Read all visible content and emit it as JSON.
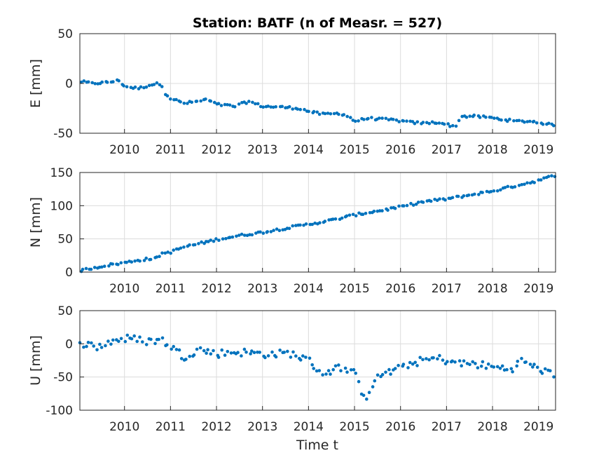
{
  "chart_data": {
    "type": "scatter",
    "title": "Station: BATF (n of Measr. = 527)",
    "xlabel": "Time t",
    "x_unit": "decimal year",
    "xlim": [
      2009.03,
      2019.37
    ],
    "x_ticks": [
      2010,
      2011,
      2012,
      2013,
      2014,
      2015,
      2016,
      2017,
      2018,
      2019
    ],
    "x_tick_labels": [
      "2010",
      "2011",
      "2012",
      "2013",
      "2014",
      "2015",
      "2016",
      "2017",
      "2018",
      "2019"
    ],
    "marker_color": "#0072BD",
    "grid": true,
    "panels": [
      {
        "id": "E",
        "ylabel": "E [mm]",
        "ylim": [
          -50,
          50
        ],
        "y_ticks": [
          -50,
          0,
          50
        ],
        "y_tick_labels": [
          "-50",
          "0",
          "50"
        ],
        "series": [
          {
            "points": [
              [
                2009.03,
                2
              ],
              [
                2009.3,
                0
              ],
              [
                2009.6,
                1
              ],
              [
                2009.9,
                3
              ],
              [
                2010.0,
                -3
              ],
              [
                2010.3,
                -5
              ],
              [
                2010.6,
                -1
              ],
              [
                2010.8,
                0
              ],
              [
                2010.85,
                -8
              ],
              [
                2011.0,
                -15
              ],
              [
                2011.3,
                -20
              ],
              [
                2011.6,
                -18
              ],
              [
                2011.8,
                -16
              ],
              [
                2012.0,
                -21
              ],
              [
                2012.4,
                -23
              ],
              [
                2012.7,
                -18
              ],
              [
                2013.0,
                -23
              ],
              [
                2013.5,
                -24
              ],
              [
                2013.8,
                -25
              ],
              [
                2014.0,
                -28
              ],
              [
                2014.3,
                -31
              ],
              [
                2014.7,
                -30
              ],
              [
                2014.9,
                -34
              ],
              [
                2015.0,
                -38
              ],
              [
                2015.3,
                -35
              ],
              [
                2015.6,
                -36
              ],
              [
                2015.9,
                -37
              ],
              [
                2016.2,
                -39
              ],
              [
                2016.5,
                -40
              ],
              [
                2016.8,
                -39
              ],
              [
                2017.0,
                -41
              ],
              [
                2017.2,
                -44
              ],
              [
                2017.3,
                -33
              ],
              [
                2017.6,
                -33
              ],
              [
                2017.9,
                -34
              ],
              [
                2018.2,
                -36
              ],
              [
                2018.5,
                -38
              ],
              [
                2018.8,
                -38
              ],
              [
                2019.0,
                -39
              ],
              [
                2019.2,
                -41
              ],
              [
                2019.37,
                -42
              ]
            ]
          }
        ]
      },
      {
        "id": "N",
        "ylabel": "N [mm]",
        "ylim": [
          0,
          150
        ],
        "y_ticks": [
          0,
          50,
          100,
          150
        ],
        "y_tick_labels": [
          "0",
          "50",
          "100",
          "150"
        ],
        "series": [
          {
            "points": [
              [
                2009.03,
                2
              ],
              [
                2009.3,
                6
              ],
              [
                2009.6,
                10
              ],
              [
                2010.0,
                14
              ],
              [
                2010.3,
                18
              ],
              [
                2010.7,
                21
              ],
              [
                2010.8,
                28
              ],
              [
                2011.0,
                30
              ],
              [
                2011.3,
                38
              ],
              [
                2011.7,
                44
              ],
              [
                2012.0,
                49
              ],
              [
                2012.5,
                55
              ],
              [
                2013.0,
                60
              ],
              [
                2013.5,
                66
              ],
              [
                2014.0,
                72
              ],
              [
                2014.5,
                78
              ],
              [
                2015.0,
                86
              ],
              [
                2015.5,
                92
              ],
              [
                2016.0,
                98
              ],
              [
                2016.5,
                106
              ],
              [
                2017.0,
                110
              ],
              [
                2017.5,
                116
              ],
              [
                2018.0,
                122
              ],
              [
                2018.5,
                130
              ],
              [
                2019.0,
                138
              ],
              [
                2019.37,
                146
              ]
            ]
          }
        ]
      },
      {
        "id": "U",
        "ylabel": "U [mm]",
        "ylim": [
          -100,
          50
        ],
        "y_ticks": [
          -100,
          -50,
          0,
          50
        ],
        "y_tick_labels": [
          "-100",
          "-50",
          "0",
          "50"
        ],
        "series": [
          {
            "points": [
              [
                2009.03,
                2
              ],
              [
                2009.4,
                -5
              ],
              [
                2009.8,
                6
              ],
              [
                2010.1,
                8
              ],
              [
                2010.5,
                4
              ],
              [
                2010.8,
                6
              ],
              [
                2011.0,
                -3
              ],
              [
                2011.3,
                -20
              ],
              [
                2011.6,
                -8
              ],
              [
                2012.0,
                -15
              ],
              [
                2012.4,
                -12
              ],
              [
                2012.8,
                -14
              ],
              [
                2013.2,
                -16
              ],
              [
                2013.6,
                -14
              ],
              [
                2014.0,
                -25
              ],
              [
                2014.3,
                -45
              ],
              [
                2014.7,
                -35
              ],
              [
                2015.0,
                -45
              ],
              [
                2015.15,
                -70
              ],
              [
                2015.25,
                -80
              ],
              [
                2015.4,
                -60
              ],
              [
                2015.6,
                -45
              ],
              [
                2015.9,
                -40
              ],
              [
                2016.2,
                -30
              ],
              [
                2016.5,
                -25
              ],
              [
                2016.8,
                -22
              ],
              [
                2017.0,
                -25
              ],
              [
                2017.3,
                -30
              ],
              [
                2017.6,
                -30
              ],
              [
                2018.0,
                -35
              ],
              [
                2018.4,
                -38
              ],
              [
                2018.65,
                -25
              ],
              [
                2018.9,
                -35
              ],
              [
                2019.1,
                -40
              ],
              [
                2019.37,
                -50
              ]
            ]
          }
        ]
      }
    ]
  }
}
